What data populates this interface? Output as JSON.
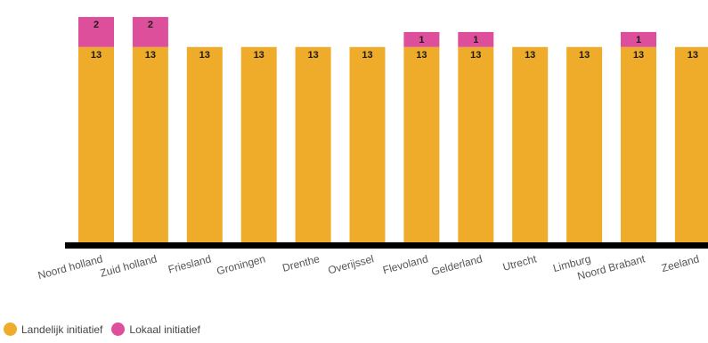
{
  "chart_data": {
    "type": "bar",
    "stacked": true,
    "categories": [
      "Noord holland",
      "Zuid holland",
      "Friesland",
      "Groningen",
      "Drenthe",
      "Overijssel",
      "Flevoland",
      "Gelderland",
      "Utrecht",
      "Limburg",
      "Noord Brabant",
      "Zeeland"
    ],
    "series": [
      {
        "name": "Landelijk initiatief",
        "color": "#EFAC2B",
        "values": [
          13,
          13,
          13,
          13,
          13,
          13,
          13,
          13,
          13,
          13,
          13,
          13
        ]
      },
      {
        "name": "Lokaal initiatief",
        "color": "#DD4F9B",
        "values": [
          2,
          2,
          0,
          0,
          0,
          0,
          1,
          1,
          0,
          0,
          1,
          0
        ]
      }
    ],
    "ylim": [
      0,
      15.3
    ],
    "legend_position": "bottom-left",
    "tick_label_rotation": -15
  }
}
